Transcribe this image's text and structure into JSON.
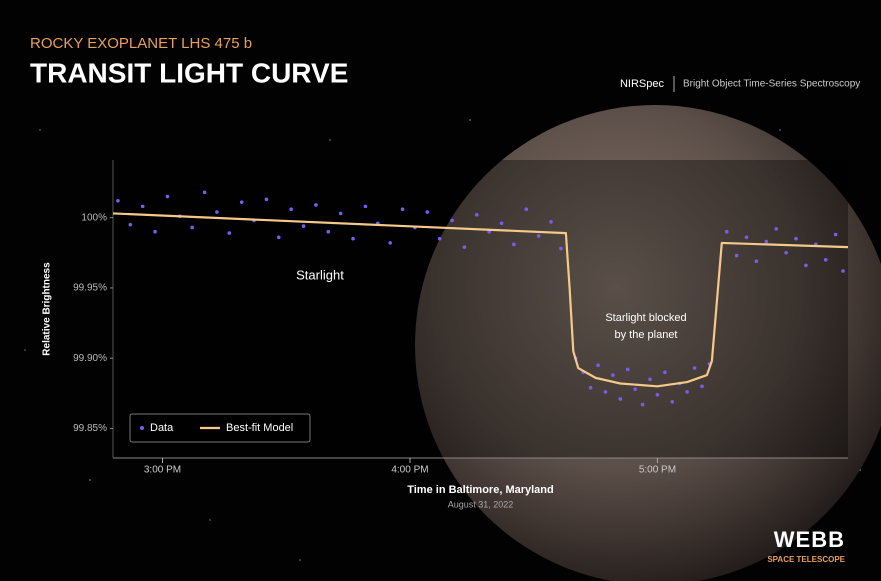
{
  "header": {
    "kicker": "ROCKY EXOPLANET LHS 475 b",
    "title": "TRANSIT LIGHT CURVE",
    "instrument": "NIRSpec",
    "mode": "Bright Object Time-Series Spectroscopy"
  },
  "chart_data": {
    "type": "scatter",
    "y_label": "Relative Brightness",
    "x_label": "Time in Baltimore, Maryland",
    "x_sublabel": "August 31, 2022",
    "annotations": [
      [
        "Starlight"
      ],
      [
        "Starlight blocked",
        "by the planet"
      ]
    ],
    "xlim": [
      14.8,
      17.77
    ],
    "xticks": [
      {
        "value": 15,
        "label": "3:00 PM"
      },
      {
        "value": 16,
        "label": "4:00 PM"
      },
      {
        "value": 17,
        "label": "5:00 PM"
      }
    ],
    "ylim": [
      99.829,
      100.041
    ],
    "yticks": [
      {
        "value": 99.85,
        "label": "99.85%"
      },
      {
        "value": 99.9,
        "label": "99.90%"
      },
      {
        "value": 99.95,
        "label": "99.95%"
      },
      {
        "value": 100,
        "label": "100%"
      }
    ],
    "grid": false,
    "legend": "lower left",
    "series": [
      {
        "name": "Data",
        "type": "scatter",
        "color": "#7b5cf0",
        "x": [
          14.82,
          14.87,
          14.92,
          14.97,
          15.02,
          15.07,
          15.12,
          15.17,
          15.22,
          15.27,
          15.32,
          15.37,
          15.42,
          15.47,
          15.52,
          15.57,
          15.62,
          15.67,
          15.72,
          15.77,
          15.82,
          15.87,
          15.92,
          15.97,
          16.02,
          16.07,
          16.12,
          16.17,
          16.22,
          16.27,
          16.32,
          16.37,
          16.42,
          16.47,
          16.52,
          16.57,
          16.61,
          16.67,
          16.7,
          16.73,
          16.76,
          16.79,
          16.82,
          16.85,
          16.88,
          16.91,
          16.94,
          16.97,
          17.0,
          17.03,
          17.06,
          17.09,
          17.12,
          17.15,
          17.18,
          17.21,
          17.28,
          17.32,
          17.36,
          17.4,
          17.44,
          17.48,
          17.52,
          17.56,
          17.6,
          17.64,
          17.68,
          17.72,
          17.75
        ],
        "values": [
          100.012,
          99.995,
          100.008,
          99.99,
          100.015,
          100.001,
          99.993,
          100.018,
          100.004,
          99.989,
          100.011,
          99.998,
          100.013,
          99.986,
          100.006,
          99.994,
          100.009,
          99.99,
          100.003,
          99.985,
          100.008,
          99.996,
          99.982,
          100.006,
          99.993,
          100.004,
          99.985,
          99.998,
          99.979,
          100.002,
          99.99,
          99.996,
          99.981,
          100.006,
          99.987,
          99.997,
          99.978,
          99.9,
          99.89,
          99.879,
          99.895,
          99.876,
          99.888,
          99.871,
          99.892,
          99.878,
          99.867,
          99.885,
          99.874,
          99.89,
          99.869,
          99.882,
          99.876,
          99.893,
          99.88,
          99.896,
          99.99,
          99.973,
          99.986,
          99.969,
          99.983,
          99.992,
          99.975,
          99.985,
          99.966,
          99.981,
          99.97,
          99.988,
          99.962
        ]
      },
      {
        "name": "Best-fit Model",
        "type": "line",
        "color": "#f5c98a",
        "x": [
          14.8,
          16.63,
          16.645,
          16.66,
          16.68,
          16.75,
          16.85,
          17.0,
          17.12,
          17.2,
          17.22,
          17.24,
          17.26,
          17.77
        ],
        "values": [
          100.003,
          99.989,
          99.95,
          99.905,
          99.893,
          99.886,
          99.882,
          99.88,
          99.883,
          99.888,
          99.898,
          99.94,
          99.982,
          99.979
        ]
      }
    ]
  },
  "logo": {
    "name": "WEBB",
    "subtitle": "SPACE TELESCOPE"
  }
}
